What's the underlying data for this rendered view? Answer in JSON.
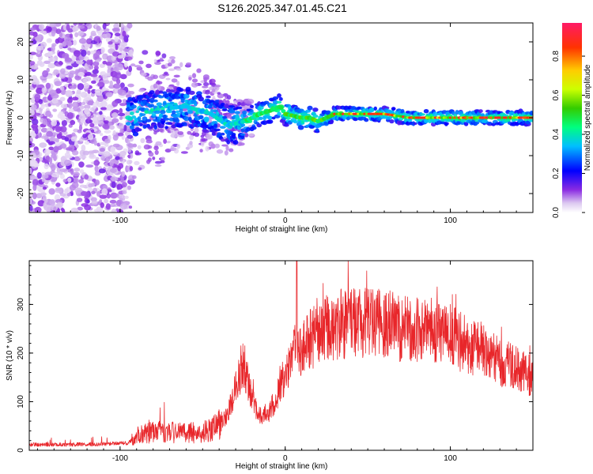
{
  "title": "S126.2025.347.01.45.C21",
  "chart_data": [
    {
      "type": "heatmap",
      "name": "spectrogram",
      "xlabel": "Height of straight line (km)",
      "ylabel": "Frequency (Hz)",
      "xlim": [
        -155,
        150
      ],
      "ylim": [
        -25,
        25
      ],
      "xticks": [
        -100,
        0,
        100
      ],
      "yticks": [
        -20,
        -10,
        0,
        10,
        20
      ],
      "colorbar": {
        "label": "Normalized spectral amplitude",
        "range": [
          0,
          0.97
        ],
        "ticks": [
          0.0,
          0.2,
          0.4,
          0.6,
          0.8
        ]
      },
      "trace": {
        "description": "dominant frequency ridge",
        "x": [
          -95,
          -80,
          -60,
          -45,
          -35,
          -25,
          -15,
          -8,
          -3,
          0,
          10,
          15,
          20,
          30,
          45,
          60,
          75,
          90,
          110,
          130,
          150
        ],
        "y": [
          0,
          2,
          3,
          1,
          -2,
          -1,
          1,
          2,
          3,
          1,
          0,
          0,
          -1,
          1,
          1,
          1,
          0,
          0,
          0,
          0,
          0
        ]
      }
    },
    {
      "type": "line",
      "name": "snr",
      "xlabel": "Height of straight line (km)",
      "ylabel": "SNR (10 * v/v)",
      "xlim": [
        -155,
        150
      ],
      "ylim": [
        0,
        390
      ],
      "xticks": [
        -100,
        0,
        100
      ],
      "yticks": [
        0,
        100,
        200,
        300
      ],
      "color": "#e8262a",
      "envelope": {
        "x": [
          -155,
          -120,
          -95,
          -90,
          -85,
          -75,
          -60,
          -45,
          -35,
          -28,
          -25,
          -20,
          -15,
          -10,
          -5,
          0,
          5,
          10,
          20,
          30,
          40,
          50,
          60,
          70,
          80,
          90,
          100,
          110,
          120,
          130,
          140,
          150
        ],
        "y": [
          12,
          12,
          15,
          30,
          35,
          38,
          35,
          40,
          70,
          150,
          180,
          100,
          70,
          80,
          110,
          160,
          200,
          215,
          240,
          258,
          262,
          262,
          260,
          252,
          248,
          245,
          238,
          215,
          205,
          180,
          170,
          150
        ]
      },
      "spike": {
        "x": 7,
        "y": 390
      }
    }
  ]
}
